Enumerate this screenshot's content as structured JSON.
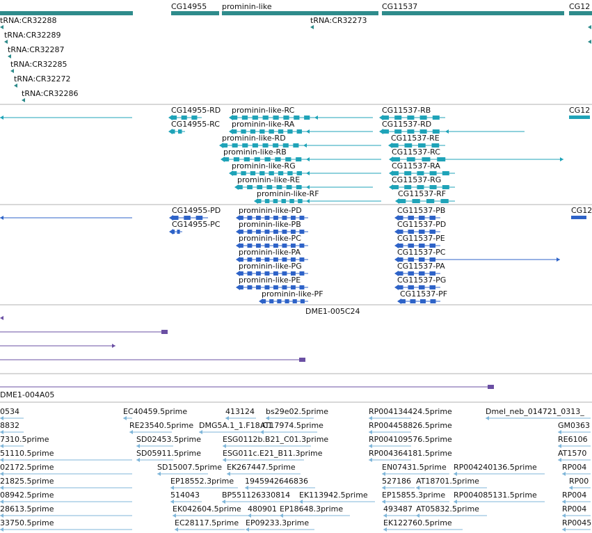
{
  "colors": {
    "gene": "#2e8b8b",
    "transcript_cyan": "#1fa3b8",
    "transcript_blue": "#2e63c8",
    "cdna": "#6a4fa3",
    "est": "#7fb6d9",
    "separator": "#b0b0b0"
  },
  "gene_track": {
    "features": [
      {
        "label": "tRNA:CR32288"
      },
      {
        "label": "CG14955"
      },
      {
        "label": "prominin-like"
      },
      {
        "label": "CG11537"
      },
      {
        "label": "CG12"
      },
      {
        "label": "tRNA:CR32273"
      },
      {
        "label": "tRNA:CR32289"
      },
      {
        "label": "tRNA:CR32287"
      },
      {
        "label": "tRNA:CR32285"
      },
      {
        "label": "tRNA:CR32272"
      },
      {
        "label": "tRNA:CR32286"
      }
    ]
  },
  "transcript_track": {
    "features": [
      {
        "label": "CG14955-RD"
      },
      {
        "label": "prominin-like-RC"
      },
      {
        "label": "CG11537-RB"
      },
      {
        "label": "CG12"
      },
      {
        "label": "CG14955-RC"
      },
      {
        "label": "prominin-like-RA"
      },
      {
        "label": "CG11537-RD"
      },
      {
        "label": "prominin-like-RD"
      },
      {
        "label": "CG11537-RE"
      },
      {
        "label": "prominin-like-RB"
      },
      {
        "label": "CG11537-RC"
      },
      {
        "label": "prominin-like-RG"
      },
      {
        "label": "CG11537-RA"
      },
      {
        "label": "prominin-like-RE"
      },
      {
        "label": "CG11537-RG"
      },
      {
        "label": "prominin-like-RF"
      },
      {
        "label": "CG11537-RF"
      }
    ]
  },
  "protein_track": {
    "features": [
      {
        "label": "CG14955-PD"
      },
      {
        "label": "prominin-like-PD"
      },
      {
        "label": "CG11537-PB"
      },
      {
        "label": "CG12"
      },
      {
        "label": "CG14955-PC"
      },
      {
        "label": "prominin-like-PB"
      },
      {
        "label": "CG11537-PD"
      },
      {
        "label": "prominin-like-PC"
      },
      {
        "label": "CG11537-PE"
      },
      {
        "label": "prominin-like-PA"
      },
      {
        "label": "CG11537-PC"
      },
      {
        "label": "prominin-like-PG"
      },
      {
        "label": "CG11537-PA"
      },
      {
        "label": "prominin-like-PE"
      },
      {
        "label": "CG11537-PG"
      },
      {
        "label": "prominin-like-PF"
      },
      {
        "label": "CG11537-PF"
      }
    ]
  },
  "cdna_track": {
    "features": [
      {
        "label": "DME1-005C24"
      },
      {
        "label": "DME1-004A05"
      }
    ]
  },
  "est_track": {
    "features": [
      {
        "label": "0534"
      },
      {
        "label": "EC40459.5prime"
      },
      {
        "label": "413124"
      },
      {
        "label": "bs29e02.5prime"
      },
      {
        "label": "RP004134424.5prime"
      },
      {
        "label": "Dmel_neb_014721_0313_"
      },
      {
        "label": "8832"
      },
      {
        "label": "RE23540.5prime"
      },
      {
        "label": "DMG5A.1_1.F18.C1"
      },
      {
        "label": "AT17974.5prime"
      },
      {
        "label": "RP004458826.5prime"
      },
      {
        "label": "GM0363"
      },
      {
        "label": "7310.5prime"
      },
      {
        "label": "SD02453.5prime"
      },
      {
        "label": "ESG0112b.B21_C01.3prime"
      },
      {
        "label": "RP004109576.5prime"
      },
      {
        "label": "RE6106"
      },
      {
        "label": "51110.5prime"
      },
      {
        "label": "SD05911.5prime"
      },
      {
        "label": "ESG011c.E21_B11.3prime"
      },
      {
        "label": "RP004364181.5prime"
      },
      {
        "label": "AT1570"
      },
      {
        "label": "02172.5prime"
      },
      {
        "label": "SD15007.5prime"
      },
      {
        "label": "EK267447.5prime"
      },
      {
        "label": "EN07431.5prime"
      },
      {
        "label": "RP004240136.5prime"
      },
      {
        "label": "RP004"
      },
      {
        "label": "21825.5prime"
      },
      {
        "label": "EP18552.3prime"
      },
      {
        "label": "1945942646836"
      },
      {
        "label": "527186"
      },
      {
        "label": "AT18701.5prime"
      },
      {
        "label": "RP00"
      },
      {
        "label": "08942.5prime"
      },
      {
        "label": "514043"
      },
      {
        "label": "BP551126330814"
      },
      {
        "label": "EK113942.5prime"
      },
      {
        "label": "EP15855.3prime"
      },
      {
        "label": "RP004085131.5prime"
      },
      {
        "label": "RP004"
      },
      {
        "label": "28613.5prime"
      },
      {
        "label": "EK042604.5prime"
      },
      {
        "label": "480901"
      },
      {
        "label": "EP18648.3prime"
      },
      {
        "label": "493487"
      },
      {
        "label": "AT05832.5prime"
      },
      {
        "label": "RP004"
      },
      {
        "label": "33750.5prime"
      },
      {
        "label": "EC28117.5prime"
      },
      {
        "label": "EP09233.3prime"
      },
      {
        "label": "EK122760.5prime"
      },
      {
        "label": "RP0045"
      }
    ]
  }
}
